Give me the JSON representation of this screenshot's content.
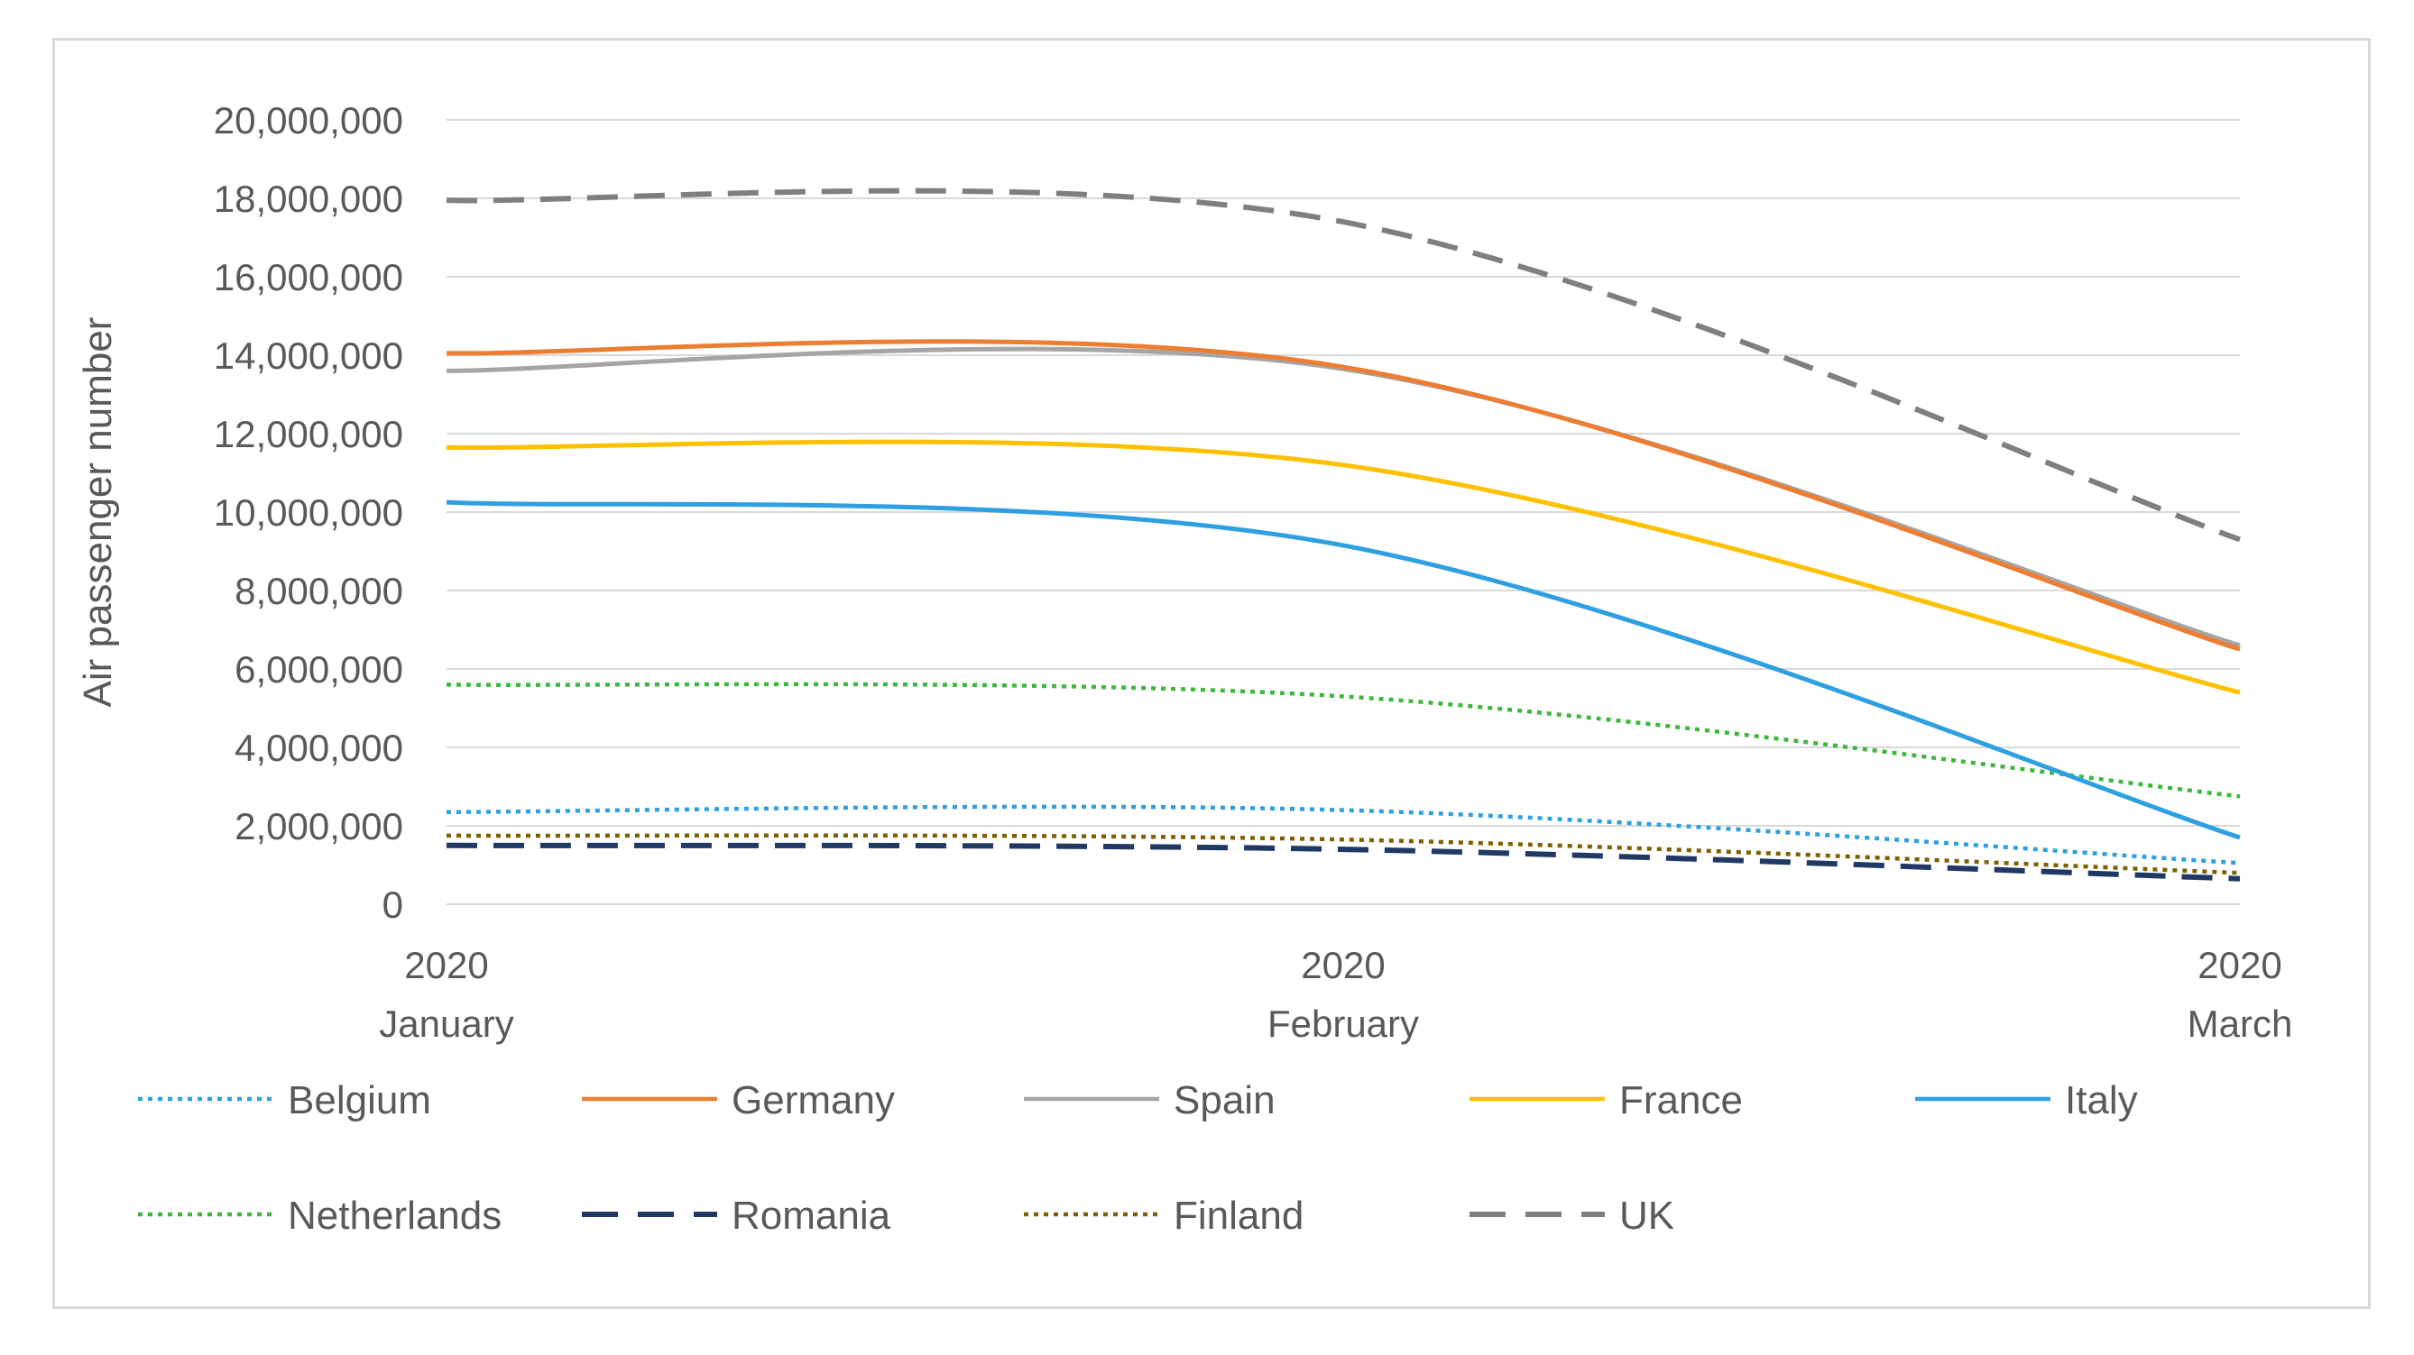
{
  "chart_data": {
    "type": "line",
    "title": "",
    "ylabel": "Air passenger number",
    "xlabel": "",
    "ylim": [
      0,
      20000000
    ],
    "yticks": [
      0,
      2000000,
      4000000,
      6000000,
      8000000,
      10000000,
      12000000,
      14000000,
      16000000,
      18000000,
      20000000
    ],
    "ytick_labels": [
      "0",
      "2,000,000",
      "4,000,000",
      "6,000,000",
      "8,000,000",
      "10,000,000",
      "12,000,000",
      "14,000,000",
      "16,000,000",
      "18,000,000",
      "20,000,000"
    ],
    "categories": [
      {
        "year": "2020",
        "month": "January"
      },
      {
        "year": "2020",
        "month": "February"
      },
      {
        "year": "2020",
        "month": "March"
      }
    ],
    "grid": true,
    "legend_position": "bottom",
    "series": [
      {
        "name": "Belgium",
        "values": [
          2350000,
          2400000,
          1050000
        ],
        "color": "#2e9fe0",
        "style": "dotted"
      },
      {
        "name": "Germany",
        "values": [
          14050000,
          13700000,
          6500000
        ],
        "color": "#ed7d31",
        "style": "solid"
      },
      {
        "name": "Spain",
        "values": [
          13600000,
          13650000,
          6600000
        ],
        "color": "#a5a5a5",
        "style": "solid"
      },
      {
        "name": "France",
        "values": [
          11650000,
          11200000,
          5400000
        ],
        "color": "#ffc000",
        "style": "solid"
      },
      {
        "name": "Italy",
        "values": [
          10250000,
          9150000,
          1700000
        ],
        "color": "#2e9fe0",
        "style": "solid"
      },
      {
        "name": "Netherlands",
        "values": [
          5600000,
          5300000,
          2750000
        ],
        "color": "#3cb93c",
        "style": "dotted"
      },
      {
        "name": "Romania",
        "values": [
          1500000,
          1400000,
          650000
        ],
        "color": "#1f3864",
        "style": "dashed"
      },
      {
        "name": "Finland",
        "values": [
          1750000,
          1650000,
          800000
        ],
        "color": "#7f6000",
        "style": "dotted"
      },
      {
        "name": "UK",
        "values": [
          17950000,
          17400000,
          9300000
        ],
        "color": "#7f7f7f",
        "style": "dashed"
      }
    ]
  }
}
